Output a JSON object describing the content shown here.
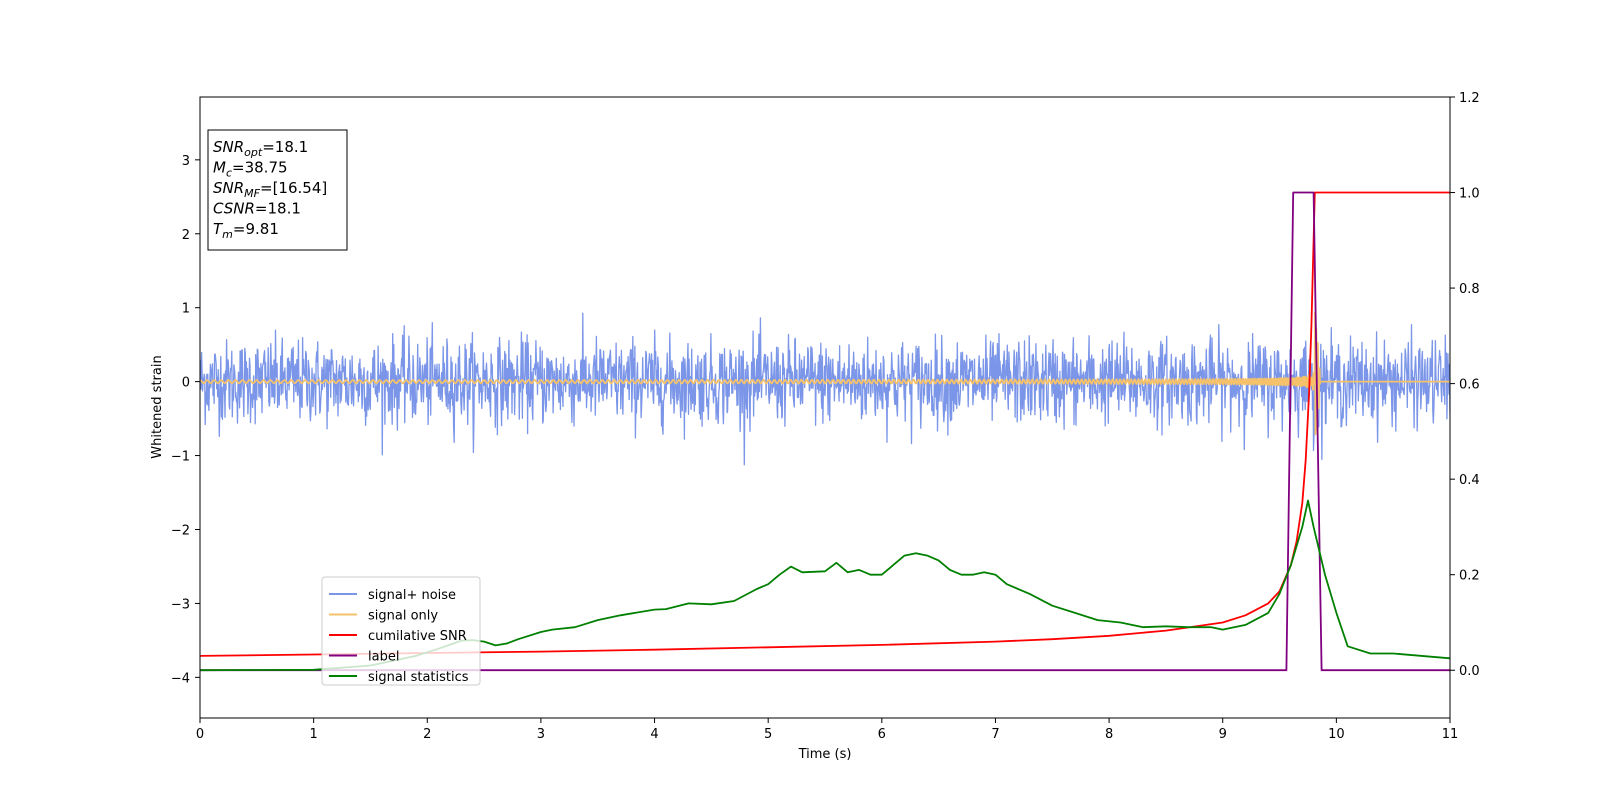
{
  "chart_data": {
    "type": "line",
    "xlabel": "Time (s)",
    "ylabel": "Whitened strain",
    "xlim": [
      0,
      11
    ],
    "ylim_left": [
      -4.55,
      3.85
    ],
    "ylim_right": [
      -0.1,
      1.2
    ],
    "xticks": [
      "0",
      "1",
      "2",
      "3",
      "4",
      "5",
      "6",
      "7",
      "8",
      "9",
      "10",
      "11"
    ],
    "yticks_left": [
      "−4",
      "−3",
      "−2",
      "−1",
      "0",
      "1",
      "2",
      "3"
    ],
    "yticks_right": [
      "0.0",
      "0.2",
      "0.4",
      "0.6",
      "0.8",
      "1.0",
      "1.2"
    ],
    "grid": false,
    "legend_position": "lower-left",
    "annotation": {
      "lines": [
        {
          "base": "SNR",
          "sub": "opt",
          "rest": "=18.1"
        },
        {
          "base": "M",
          "sub": "c",
          "rest": "=38.75"
        },
        {
          "base": "SNR",
          "sub": "MF",
          "rest": "=[16.54]"
        },
        {
          "base": "CSNR",
          "sub": "",
          "rest": "=18.1"
        },
        {
          "base": "T",
          "sub": "m",
          "rest": "=9.81"
        }
      ]
    },
    "series": [
      {
        "name": "signal+ noise",
        "color": "#7b96e8",
        "axis": "left",
        "kind": "noise",
        "amplitude_std": 0.28,
        "peak_abs": 1.1,
        "duration": 11
      },
      {
        "name": "signal only",
        "color": "#f5c26b",
        "axis": "left",
        "kind": "chirp",
        "merger_time": 9.81,
        "peak_amplitude": 1.2,
        "ringdown_end": 9.86
      },
      {
        "name": "cumilative SNR",
        "color": "#ff0000",
        "axis": "right",
        "x": [
          0,
          1,
          2,
          3,
          4,
          5,
          6,
          7,
          7.5,
          8,
          8.5,
          9,
          9.2,
          9.4,
          9.5,
          9.6,
          9.65,
          9.7,
          9.73,
          9.76,
          9.78,
          9.8,
          9.81,
          11
        ],
        "values": [
          0.03,
          0.033,
          0.036,
          0.039,
          0.043,
          0.048,
          0.053,
          0.06,
          0.065,
          0.072,
          0.083,
          0.1,
          0.115,
          0.14,
          0.165,
          0.22,
          0.27,
          0.35,
          0.44,
          0.58,
          0.72,
          0.9,
          1.0,
          1.0
        ]
      },
      {
        "name": "label",
        "color": "#800080",
        "axis": "right",
        "x": [
          0,
          9.56,
          9.62,
          9.8,
          9.87,
          11
        ],
        "values": [
          0,
          0,
          1,
          1,
          0,
          0
        ]
      },
      {
        "name": "signal statistics",
        "color": "#008000",
        "axis": "right",
        "x": [
          0,
          1,
          1.5,
          1.9,
          2.1,
          2.3,
          2.4,
          2.5,
          2.6,
          2.7,
          2.8,
          3.0,
          3.1,
          3.3,
          3.5,
          3.7,
          4.0,
          4.1,
          4.3,
          4.5,
          4.7,
          4.9,
          5.0,
          5.1,
          5.2,
          5.3,
          5.5,
          5.6,
          5.7,
          5.8,
          5.9,
          6.0,
          6.1,
          6.2,
          6.3,
          6.4,
          6.5,
          6.6,
          6.7,
          6.8,
          6.9,
          7.0,
          7.1,
          7.3,
          7.5,
          7.7,
          7.9,
          8.1,
          8.3,
          8.5,
          8.7,
          8.9,
          9.0,
          9.2,
          9.4,
          9.5,
          9.6,
          9.7,
          9.75,
          9.8,
          9.9,
          10.0,
          10.1,
          10.3,
          10.5,
          11.0
        ],
        "values": [
          0.0,
          0.001,
          0.01,
          0.03,
          0.045,
          0.062,
          0.063,
          0.06,
          0.052,
          0.056,
          0.065,
          0.08,
          0.085,
          0.09,
          0.105,
          0.115,
          0.127,
          0.128,
          0.14,
          0.138,
          0.145,
          0.17,
          0.18,
          0.2,
          0.217,
          0.205,
          0.207,
          0.225,
          0.205,
          0.21,
          0.2,
          0.2,
          0.22,
          0.24,
          0.245,
          0.24,
          0.23,
          0.21,
          0.2,
          0.2,
          0.205,
          0.2,
          0.18,
          0.16,
          0.135,
          0.12,
          0.105,
          0.1,
          0.09,
          0.092,
          0.09,
          0.09,
          0.085,
          0.095,
          0.12,
          0.16,
          0.22,
          0.3,
          0.355,
          0.3,
          0.2,
          0.12,
          0.05,
          0.035,
          0.035,
          0.025
        ]
      }
    ]
  }
}
